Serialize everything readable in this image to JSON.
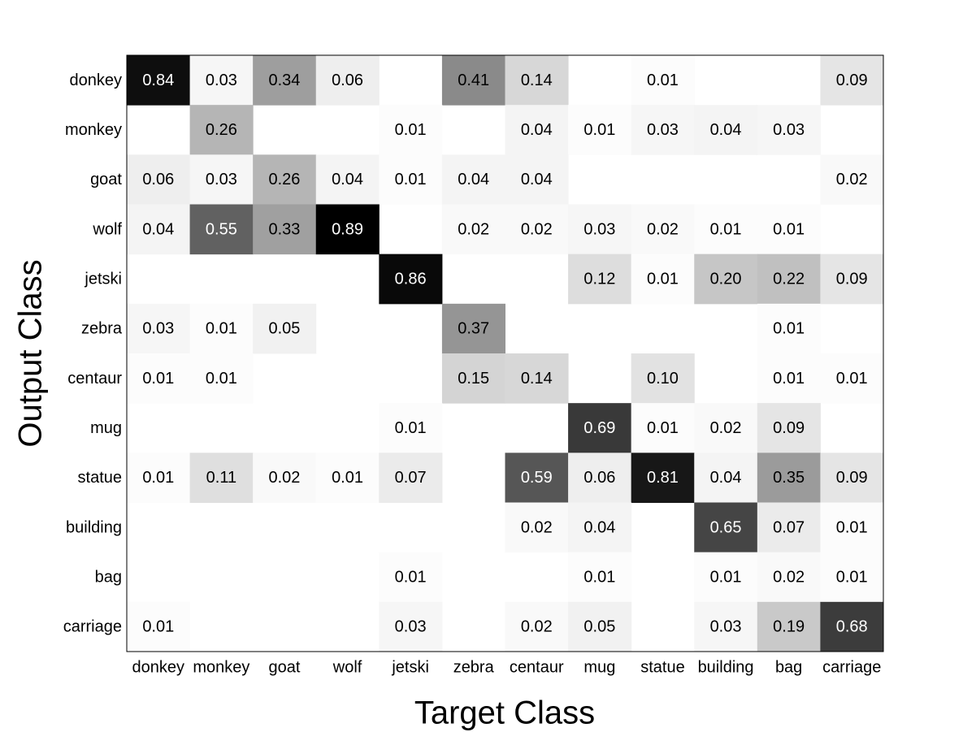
{
  "chart_data": {
    "type": "heatmap",
    "x_label": "Target Class",
    "y_label": "Output Class",
    "x_categories": [
      "donkey",
      "monkey",
      "goat",
      "wolf",
      "jetski",
      "zebra",
      "centaur",
      "mug",
      "statue",
      "building",
      "bag",
      "carriage"
    ],
    "y_categories": [
      "donkey",
      "monkey",
      "goat",
      "wolf",
      "jetski",
      "zebra",
      "centaur",
      "mug",
      "statue",
      "building",
      "bag",
      "carriage"
    ],
    "colormap": "gray_r",
    "values": [
      [
        0.84,
        0.03,
        0.34,
        0.06,
        null,
        0.41,
        0.14,
        null,
        0.01,
        null,
        null,
        0.09
      ],
      [
        null,
        0.26,
        null,
        null,
        0.01,
        null,
        0.04,
        0.01,
        0.03,
        0.04,
        0.03,
        null
      ],
      [
        0.06,
        0.03,
        0.26,
        0.04,
        0.01,
        0.04,
        0.04,
        null,
        null,
        null,
        null,
        0.02
      ],
      [
        0.04,
        0.55,
        0.33,
        0.89,
        null,
        0.02,
        0.02,
        0.03,
        0.02,
        0.01,
        0.01,
        null
      ],
      [
        null,
        null,
        null,
        null,
        0.86,
        null,
        null,
        0.12,
        0.01,
        0.2,
        0.22,
        0.09
      ],
      [
        0.03,
        0.01,
        0.05,
        null,
        null,
        0.37,
        null,
        null,
        null,
        null,
        0.01,
        null
      ],
      [
        0.01,
        0.01,
        null,
        null,
        null,
        0.15,
        0.14,
        null,
        0.1,
        null,
        0.01,
        0.01
      ],
      [
        null,
        null,
        null,
        null,
        0.01,
        null,
        null,
        0.69,
        0.01,
        0.02,
        0.09,
        null
      ],
      [
        0.01,
        0.11,
        0.02,
        0.01,
        0.07,
        null,
        0.59,
        0.06,
        0.81,
        0.04,
        0.35,
        0.09
      ],
      [
        null,
        null,
        null,
        null,
        null,
        null,
        0.02,
        0.04,
        null,
        0.65,
        0.07,
        0.01
      ],
      [
        null,
        null,
        null,
        null,
        0.01,
        null,
        null,
        0.01,
        null,
        0.01,
        0.02,
        0.01
      ],
      [
        0.01,
        null,
        null,
        null,
        0.03,
        null,
        0.02,
        0.05,
        null,
        0.03,
        0.19,
        0.68
      ]
    ],
    "value_labels": [
      [
        "0.84",
        "0.03",
        "0.34",
        "0.06",
        null,
        "0.41",
        "0.14",
        null,
        "0.01",
        null,
        null,
        "0.09"
      ],
      [
        null,
        "0.26",
        null,
        null,
        "0.01",
        null,
        "0.04",
        "0.01",
        "0.03",
        "0.04",
        "0.03",
        null
      ],
      [
        "0.06",
        "0.03",
        "0.26",
        "0.04",
        "0.01",
        "0.04",
        "0.04",
        null,
        null,
        null,
        null,
        "0.02"
      ],
      [
        "0.04",
        "0.55",
        "0.33",
        "0.89",
        null,
        "0.02",
        "0.02",
        "0.03",
        "0.02",
        "0.01",
        "0.01",
        null
      ],
      [
        null,
        null,
        null,
        null,
        "0.86",
        null,
        null,
        "0.12",
        "0.01",
        "0.20",
        "0.22",
        "0.09"
      ],
      [
        "0.03",
        "0.01",
        "0.05",
        null,
        null,
        "0.37",
        null,
        null,
        null,
        null,
        "0.01",
        null
      ],
      [
        "0.01",
        "0.01",
        null,
        null,
        null,
        "0.15",
        "0.14",
        null,
        "0.10",
        null,
        "0.01",
        "0.01"
      ],
      [
        null,
        null,
        null,
        null,
        "0.01",
        null,
        null,
        "0.69",
        "0.01",
        "0.02",
        "0.09",
        null
      ],
      [
        "0.01",
        "0.11",
        "0.02",
        "0.01",
        "0.07",
        null,
        "0.59",
        "0.06",
        "0.81",
        "0.04",
        "0.35",
        "0.09"
      ],
      [
        null,
        null,
        null,
        null,
        null,
        null,
        "0.02",
        "0.04",
        null,
        "0.65",
        "0.07",
        "0.01"
      ],
      [
        null,
        null,
        null,
        null,
        "0.01",
        null,
        null,
        "0.01",
        null,
        "0.01",
        "0.02",
        "0.01"
      ],
      [
        "0.01",
        null,
        null,
        null,
        "0.03",
        null,
        "0.02",
        "0.05",
        null,
        "0.03",
        "0.19",
        "0.68"
      ]
    ]
  }
}
